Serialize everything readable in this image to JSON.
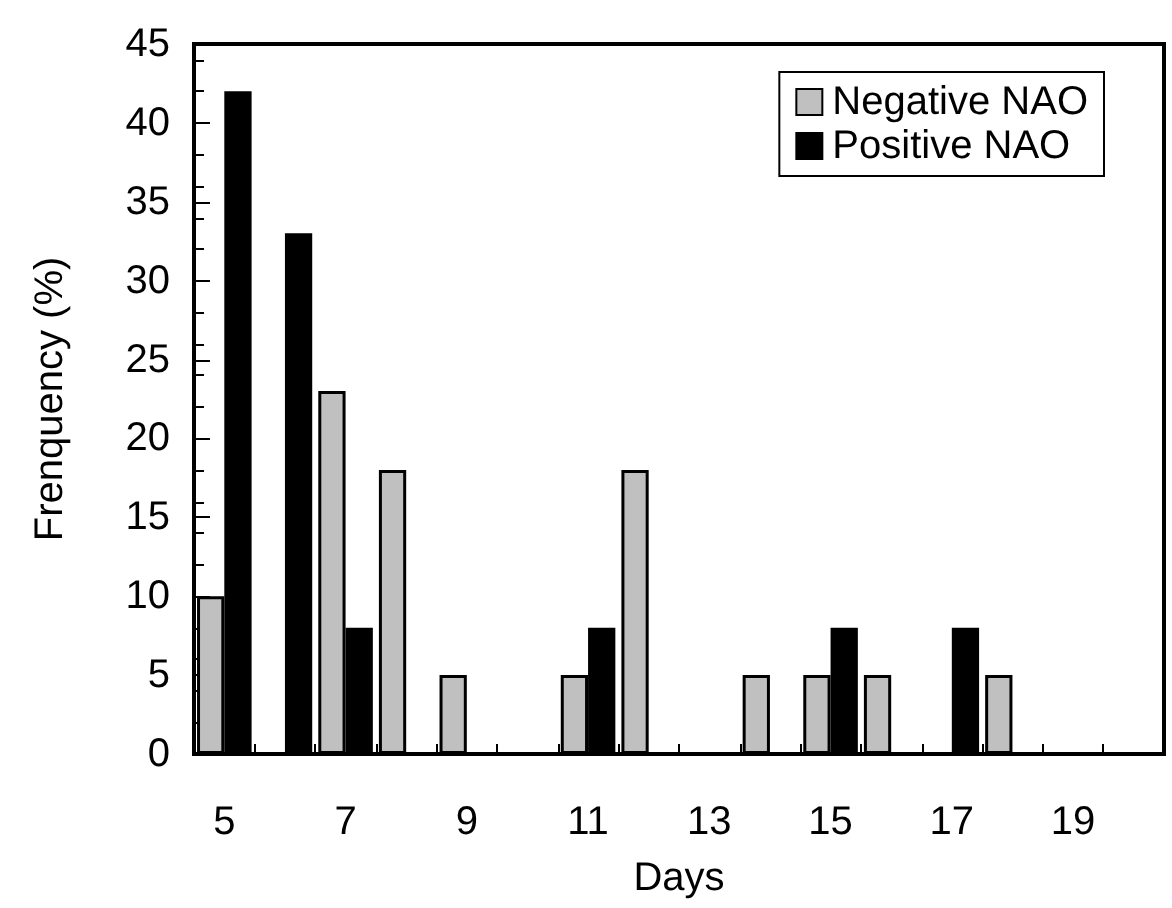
{
  "chart_data": {
    "type": "bar",
    "xlabel": "Days",
    "ylabel": "Frenquency (%)",
    "categories": [
      "5",
      null,
      "7",
      null,
      "9",
      null,
      "11",
      null,
      "13",
      null,
      "15",
      null,
      "17",
      null,
      "19",
      null
    ],
    "series": [
      {
        "name": "Negative NAO",
        "color": "#c0c0c0",
        "values": [
          10,
          null,
          23,
          18,
          5,
          null,
          5,
          18,
          null,
          5,
          5,
          5,
          null,
          5,
          null,
          null
        ]
      },
      {
        "name": "Positive NAO",
        "color": "#000000",
        "values": [
          42,
          33,
          8,
          null,
          null,
          null,
          8,
          null,
          null,
          null,
          8,
          null,
          8,
          null,
          null,
          null
        ]
      }
    ],
    "ylim": [
      0,
      45
    ],
    "yticks": [
      0,
      5,
      10,
      15,
      20,
      25,
      30,
      35,
      40,
      45
    ],
    "legend": "top right"
  }
}
